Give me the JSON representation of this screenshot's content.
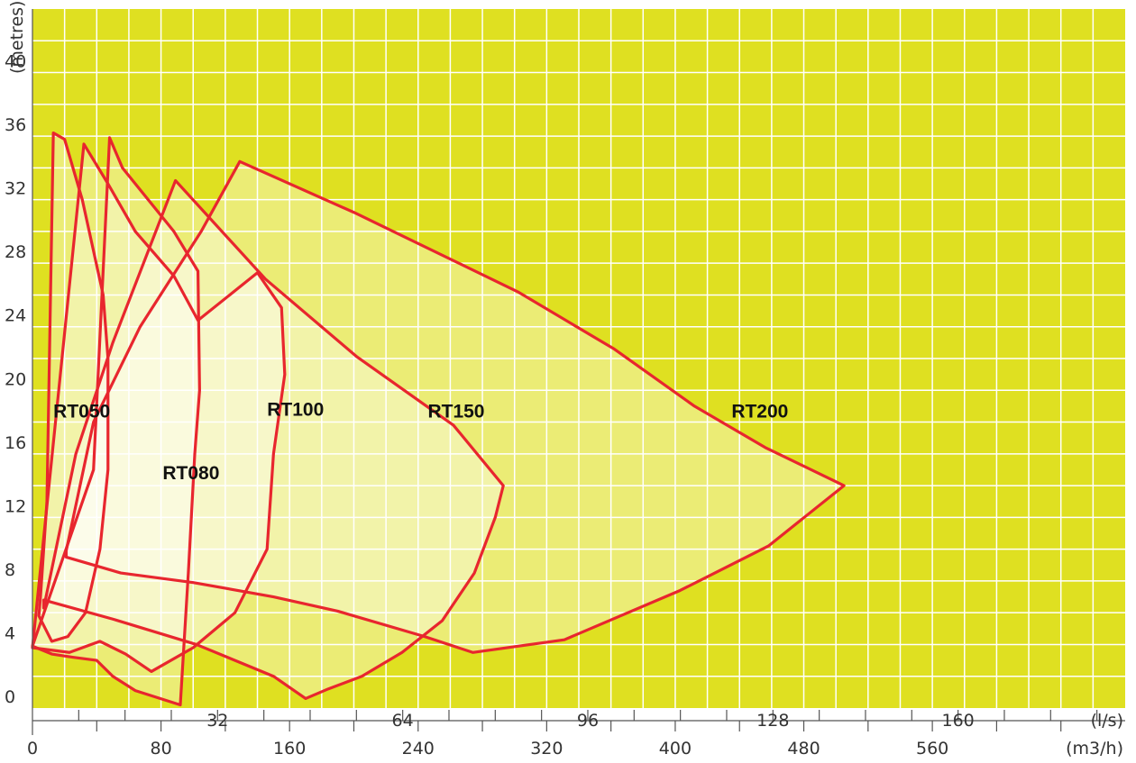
{
  "chart_data": {
    "type": "area",
    "title": "",
    "ylabel": "(metres)",
    "xlabel_ls": "(l/s)",
    "xlabel_m3h": "(m3/h)",
    "xlim": [
      0,
      680
    ],
    "ylim": [
      0,
      44
    ],
    "grid": true,
    "y_ticks": [
      0,
      4,
      8,
      12,
      16,
      20,
      24,
      28,
      32,
      36,
      40
    ],
    "x_ticks_ls": [
      32,
      64,
      96,
      128,
      160
    ],
    "x_ticks_m3h": [
      0,
      80,
      160,
      240,
      320,
      400,
      480,
      560
    ],
    "colors": {
      "background": "#dfe021",
      "grid": "#ffffff",
      "outline": "#e8262e",
      "fill": "#fbf8d6"
    },
    "series": [
      {
        "name": "RT050",
        "label_at": [
          13,
          18.3
        ],
        "points": [
          [
            5,
            7
          ],
          [
            9,
            13
          ],
          [
            13,
            36.2
          ],
          [
            20,
            35.8
          ],
          [
            31,
            32
          ],
          [
            44,
            26
          ],
          [
            47,
            22
          ],
          [
            47,
            15
          ],
          [
            42,
            10
          ],
          [
            33,
            6
          ],
          [
            22,
            4.5
          ],
          [
            12,
            4.2
          ],
          [
            4,
            5.8
          ]
        ]
      },
      {
        "name": "RT080",
        "label_at": [
          81,
          14.4
        ],
        "points": [
          [
            38,
            15
          ],
          [
            48,
            35.9
          ],
          [
            56,
            34
          ],
          [
            88,
            30
          ],
          [
            103,
            27.5
          ],
          [
            104,
            20
          ],
          [
            101,
            16
          ],
          [
            97,
            8.5
          ],
          [
            92,
            0.2
          ],
          [
            64,
            1.1
          ],
          [
            50,
            2
          ],
          [
            40,
            3
          ],
          [
            25,
            3.2
          ],
          [
            12,
            3.4
          ],
          [
            0,
            3.9
          ]
        ]
      },
      {
        "name": "RT100",
        "label_at": [
          146,
          18.4
        ],
        "points": [
          [
            32,
            35.5
          ],
          [
            47,
            33
          ],
          [
            64,
            30
          ],
          [
            88,
            27.2
          ],
          [
            103,
            24.4
          ],
          [
            140,
            27.4
          ],
          [
            155,
            25.2
          ],
          [
            157,
            21
          ],
          [
            150,
            16
          ],
          [
            146,
            10
          ],
          [
            126,
            6
          ],
          [
            100,
            3.8
          ],
          [
            74,
            2.3
          ],
          [
            58,
            3.4
          ],
          [
            42,
            4.2
          ],
          [
            23,
            3.5
          ],
          [
            0,
            3.8
          ]
        ]
      },
      {
        "name": "RT150",
        "label_at": [
          246,
          18.3
        ],
        "points": [
          [
            7,
            6.3
          ],
          [
            27,
            16
          ],
          [
            50,
            23
          ],
          [
            89,
            33.2
          ],
          [
            145,
            27
          ],
          [
            202,
            22.1
          ],
          [
            262,
            17.8
          ],
          [
            293,
            14
          ],
          [
            288,
            12
          ],
          [
            275,
            8.5
          ],
          [
            255,
            5.5
          ],
          [
            230,
            3.5
          ],
          [
            205,
            2
          ],
          [
            184,
            1.2
          ],
          [
            170,
            0.6
          ],
          [
            150,
            2
          ],
          [
            102,
            4
          ],
          [
            50,
            5.6
          ],
          [
            7,
            6.8
          ]
        ]
      },
      {
        "name": "RT200",
        "label_at": [
          435,
          18.3
        ],
        "points": [
          [
            21,
            9.9
          ],
          [
            38,
            18
          ],
          [
            67,
            24
          ],
          [
            105,
            30
          ],
          [
            129,
            34.4
          ],
          [
            200,
            31.2
          ],
          [
            302,
            26.2
          ],
          [
            362,
            22.6
          ],
          [
            412,
            19
          ],
          [
            456,
            16.4
          ],
          [
            505,
            14
          ],
          [
            458,
            10.2
          ],
          [
            403,
            7.4
          ],
          [
            331,
            4.3
          ],
          [
            274,
            3.5
          ],
          [
            244,
            4.5
          ],
          [
            190,
            6.1
          ],
          [
            150,
            7
          ],
          [
            100,
            7.9
          ],
          [
            55,
            8.5
          ],
          [
            21,
            9.5
          ]
        ]
      }
    ]
  }
}
